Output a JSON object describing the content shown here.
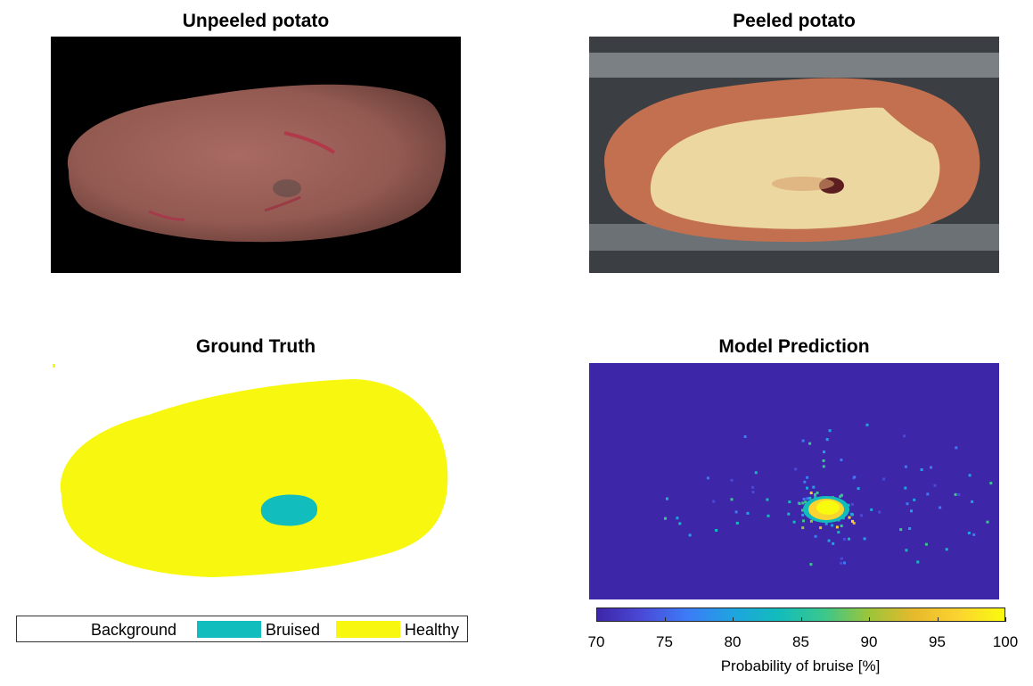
{
  "panels": {
    "unpeeled": {
      "title": "Unpeeled potato"
    },
    "peeled": {
      "title": "Peeled potato"
    },
    "ground_truth": {
      "title": "Ground Truth"
    },
    "prediction": {
      "title": "Model Prediction"
    }
  },
  "legend": {
    "items": [
      {
        "label": "Background",
        "color": "#ffffff"
      },
      {
        "label": "Bruised",
        "color": "#12bdbd"
      },
      {
        "label": "Healthy",
        "color": "#f7f70f"
      }
    ]
  },
  "colorbar": {
    "label": "Probability of bruise [%]",
    "ticks": [
      "70",
      "75",
      "80",
      "85",
      "90",
      "95",
      "100"
    ],
    "min": 70,
    "max": 100,
    "colormap": [
      "#3d26a8",
      "#4a4ad8",
      "#3c7cf7",
      "#1ea4e0",
      "#12bcbc",
      "#3ac78d",
      "#9bc53a",
      "#e7b92c",
      "#fcd42f",
      "#f9fb0e"
    ]
  }
}
